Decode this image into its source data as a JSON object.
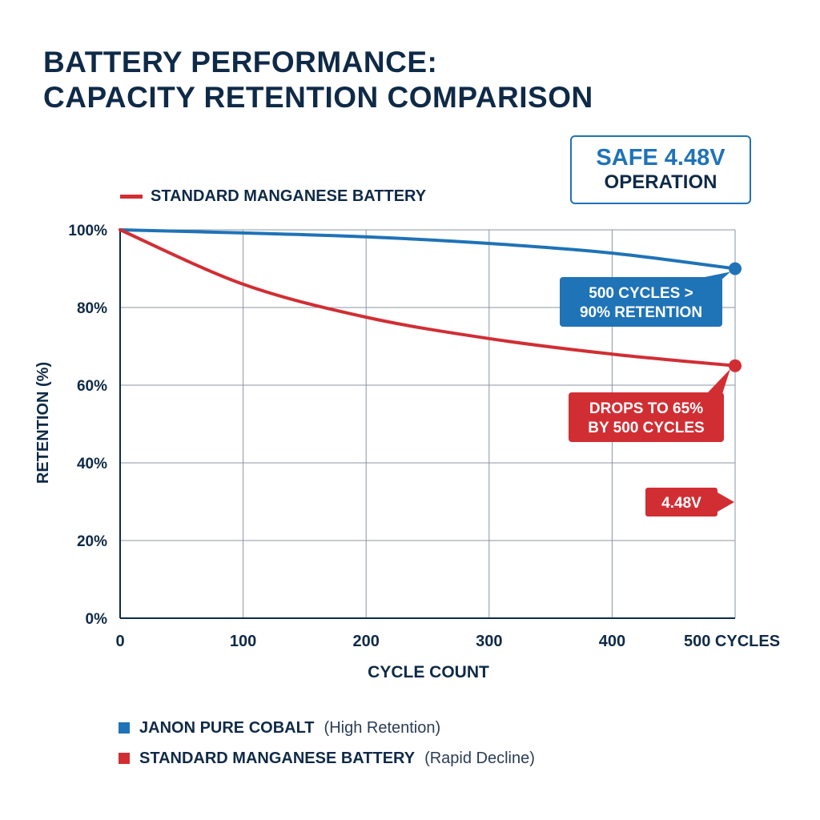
{
  "title_lines": [
    "BATTERY PERFORMANCE:",
    "CAPACITY RETENTION COMPARISON"
  ],
  "badge": {
    "line1": "SAFE 4.48V",
    "line2": "OPERATION"
  },
  "top_legend_label": "STANDARD MANGANESE BATTERY",
  "colors": {
    "cobalt": "#1f73b7",
    "manganese": "#d12e34",
    "text": "#0f2a47",
    "grid": "#8a96a3"
  },
  "callouts": {
    "cobalt": [
      "500 CYCLES >",
      "90% RETENTION"
    ],
    "manganese": [
      "DROPS TO 65%",
      "BY 500 CYCLES"
    ],
    "voltage": "4.48V"
  },
  "bottom_legend": [
    {
      "name": "JANON PURE COBALT",
      "desc": "(High Retention)",
      "color": "#1f73b7"
    },
    {
      "name": "STANDARD MANGANESE BATTERY",
      "desc": "(Rapid Decline)",
      "color": "#d12e34"
    }
  ],
  "chart_data": {
    "type": "line",
    "xlabel": "CYCLE COUNT",
    "ylabel": "RETENTION (%)",
    "xlim": [
      0,
      500
    ],
    "ylim": [
      0,
      100
    ],
    "x_ticks": [
      0,
      100,
      200,
      300,
      400,
      500
    ],
    "x_tick_labels": [
      "0",
      "100",
      "200",
      "300",
      "400",
      "500 CYCLES"
    ],
    "y_ticks": [
      0,
      20,
      40,
      60,
      80,
      100
    ],
    "y_tick_labels": [
      "0%",
      "20%",
      "40%",
      "60%",
      "80%",
      "100%"
    ],
    "grid": true,
    "series": [
      {
        "name": "JANON PURE COBALT",
        "x": [
          0,
          100,
          200,
          300,
          400,
          500
        ],
        "values": [
          100,
          99.2,
          98.2,
          96.5,
          94,
          90
        ]
      },
      {
        "name": "STANDARD MANGANESE BATTERY",
        "x": [
          0,
          100,
          200,
          300,
          400,
          500
        ],
        "values": [
          100,
          86,
          77.5,
          72,
          68,
          65
        ]
      }
    ]
  }
}
